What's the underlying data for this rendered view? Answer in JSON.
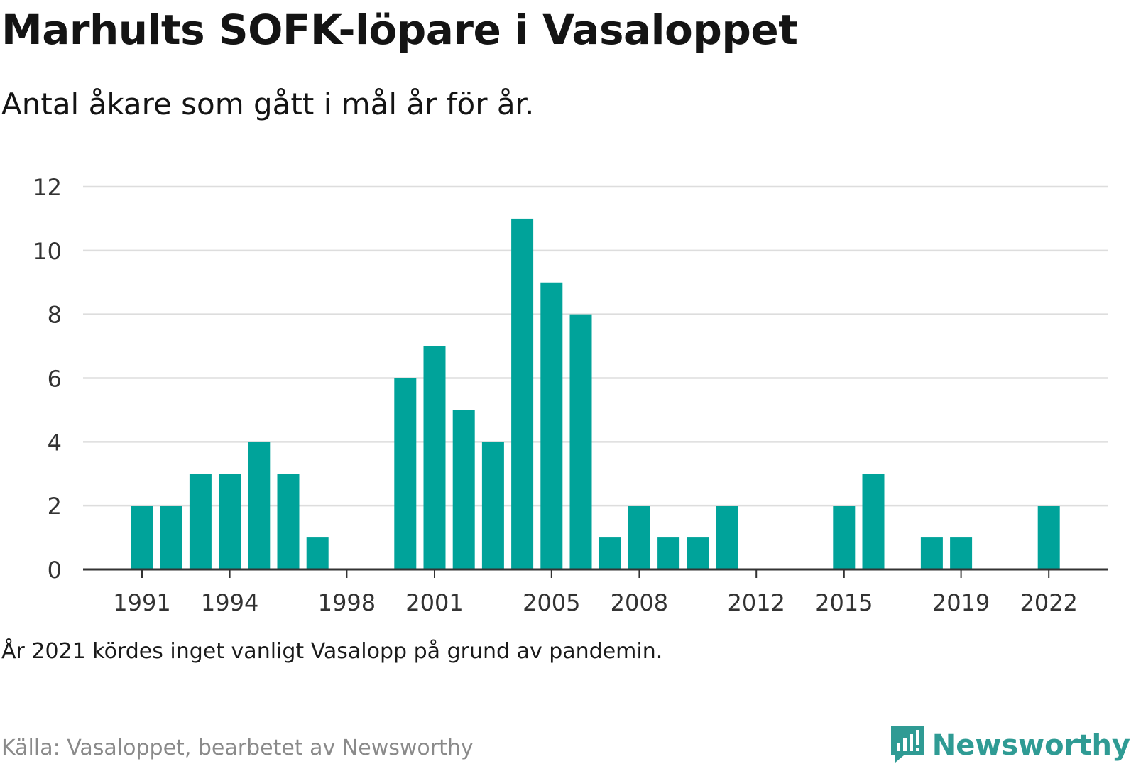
{
  "title": "Marhults SOFK-löpare i Vasaloppet",
  "subtitle": "Antal åkare som gått i mål år för år.",
  "note": "År 2021 kördes inget vanligt Vasalopp på grund av pandemin.",
  "source": "Källa: Vasaloppet, bearbetet av Newsworthy",
  "brand": {
    "name": "Newsworthy",
    "icon": "newsworthy-logo-icon",
    "color": "#2f9b94"
  },
  "colors": {
    "bar": "#00a39a",
    "grid": "#dddddd",
    "axis": "#333333",
    "tick_text": "#333333"
  },
  "chart_data": {
    "type": "bar",
    "x": [
      1991,
      1992,
      1993,
      1994,
      1995,
      1996,
      1997,
      1998,
      1999,
      2000,
      2001,
      2002,
      2003,
      2004,
      2005,
      2006,
      2007,
      2008,
      2009,
      2010,
      2011,
      2012,
      2013,
      2014,
      2015,
      2016,
      2017,
      2018,
      2019,
      2020,
      2021,
      2022
    ],
    "values": [
      2,
      2,
      3,
      3,
      4,
      3,
      1,
      0,
      0,
      6,
      7,
      5,
      4,
      11,
      9,
      8,
      1,
      2,
      1,
      1,
      2,
      0,
      0,
      0,
      2,
      3,
      0,
      1,
      1,
      0,
      0,
      2
    ],
    "x_tick_labels": [
      "1991",
      "1994",
      "1998",
      "2001",
      "2005",
      "2008",
      "2012",
      "2015",
      "2019",
      "2022"
    ],
    "y_ticks": [
      0,
      2,
      4,
      6,
      8,
      10,
      12
    ],
    "ylim": [
      0,
      12
    ],
    "xlabel": "",
    "ylabel": "",
    "grid": "horizontal",
    "legend": "none"
  }
}
